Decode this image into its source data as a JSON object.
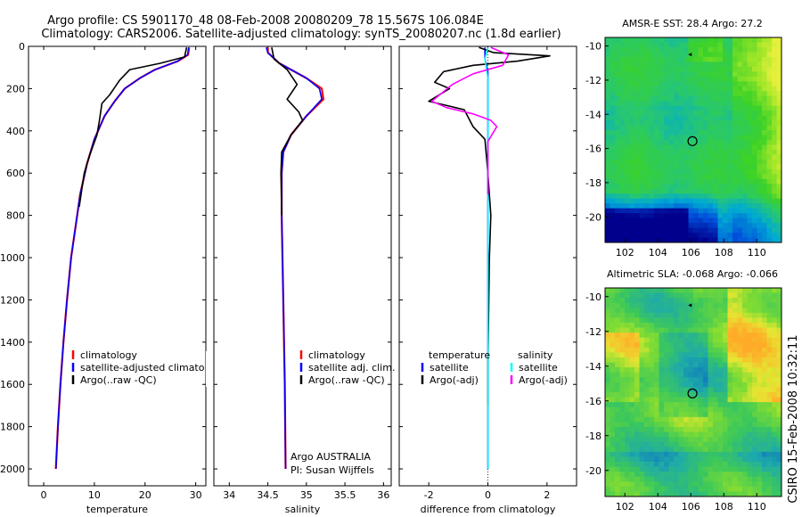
{
  "figure": {
    "title_line1": "Argo profile: CS 5901170_48 08-Feb-2008 20080209_78 15.567S 106.084E",
    "title_line2": "Climatology: CARS2006. Satellite-adjusted climatology: synTS_20080207.nc (1.8d earlier)",
    "side_label": "CSIRO 15-Feb-2008 10:32:11",
    "colors": {
      "climatology": "#ff0000",
      "satellite": "#0000ff",
      "argo": "#000000",
      "sat_diff": "#00ffff",
      "argo_adj": "#ff00ff"
    }
  },
  "chart_data": [
    {
      "type": "line",
      "xlabel": "temperature",
      "ylabel": "",
      "xlim": [
        -3,
        32
      ],
      "ylim": [
        2080,
        0
      ],
      "y_reversed": true,
      "xticks": [
        0,
        10,
        20,
        30
      ],
      "yticks": [
        0,
        200,
        400,
        600,
        800,
        1000,
        1200,
        1400,
        1600,
        1800,
        2000
      ],
      "legend": {
        "placement": "bottom-left",
        "entries": [
          "climatology",
          "satellite-adjusted climatology",
          "Argo(..raw -QC)"
        ]
      },
      "series": [
        {
          "name": "climatology",
          "color": "#ff0000",
          "points": [
            [
              28.7,
              5
            ],
            [
              28.5,
              40
            ],
            [
              26.5,
              70
            ],
            [
              22,
              110
            ],
            [
              19,
              150
            ],
            [
              16,
              200
            ],
            [
              14,
              260
            ],
            [
              12,
              330
            ],
            [
              10,
              440
            ],
            [
              8.5,
              560
            ],
            [
              7.2,
              700
            ],
            [
              6.3,
              850
            ],
            [
              5.4,
              1000
            ],
            [
              4.6,
              1200
            ],
            [
              3.9,
              1400
            ],
            [
              3.3,
              1600
            ],
            [
              2.8,
              1800
            ],
            [
              2.4,
              2000
            ]
          ]
        },
        {
          "name": "satellite-adjusted climatology",
          "color": "#0000ff",
          "points": [
            [
              28.6,
              5
            ],
            [
              28.4,
              40
            ],
            [
              26.4,
              70
            ],
            [
              22,
              110
            ],
            [
              19,
              150
            ],
            [
              16,
              200
            ],
            [
              14,
              260
            ],
            [
              12,
              330
            ],
            [
              10,
              440
            ],
            [
              8.5,
              560
            ],
            [
              7.2,
              700
            ],
            [
              6.3,
              850
            ],
            [
              5.4,
              1000
            ],
            [
              4.6,
              1200
            ],
            [
              3.9,
              1400
            ],
            [
              3.3,
              1600
            ],
            [
              2.8,
              1800
            ],
            [
              2.4,
              2000
            ]
          ]
        },
        {
          "name": "Argo(..raw -QC)",
          "color": "#000000",
          "points": [
            [
              28.2,
              5
            ],
            [
              27.8,
              50
            ],
            [
              23,
              80
            ],
            [
              17,
              110
            ],
            [
              15,
              160
            ],
            [
              13,
              230
            ],
            [
              11.5,
              270
            ],
            [
              11,
              350
            ],
            [
              10.5,
              420
            ],
            [
              9,
              520
            ],
            [
              8,
              600
            ],
            [
              7,
              760
            ]
          ]
        }
      ]
    },
    {
      "type": "line",
      "xlabel": "salinity",
      "ylabel": "",
      "xlim": [
        33.8,
        36.1
      ],
      "ylim": [
        2080,
        0
      ],
      "y_reversed": true,
      "xticks": [
        34,
        34.5,
        35,
        35.5,
        36
      ],
      "legend": {
        "placement": "bottom-right",
        "entries": [
          "climatology",
          "satellite adj. clim.",
          "Argo(..raw -QC)"
        ]
      },
      "annotation": {
        "line1": "Argo AUSTRALIA",
        "line2": "PI: Susan Wijffels"
      },
      "series": [
        {
          "name": "climatology",
          "color": "#ff0000",
          "points": [
            [
              34.5,
              5
            ],
            [
              34.5,
              30
            ],
            [
              34.65,
              80
            ],
            [
              35.0,
              150
            ],
            [
              35.2,
              200
            ],
            [
              35.22,
              250
            ],
            [
              35.0,
              330
            ],
            [
              34.8,
              420
            ],
            [
              34.7,
              500
            ],
            [
              34.68,
              600
            ],
            [
              34.68,
              800
            ],
            [
              34.7,
              1200
            ],
            [
              34.72,
              1600
            ],
            [
              34.73,
              2000
            ]
          ]
        },
        {
          "name": "satellite adj. clim.",
          "color": "#0000ff",
          "points": [
            [
              34.48,
              5
            ],
            [
              34.5,
              30
            ],
            [
              34.65,
              80
            ],
            [
              35.0,
              150
            ],
            [
              35.17,
              200
            ],
            [
              35.2,
              250
            ],
            [
              35.0,
              330
            ],
            [
              34.8,
              420
            ],
            [
              34.7,
              500
            ],
            [
              34.68,
              600
            ],
            [
              34.68,
              800
            ],
            [
              34.7,
              1200
            ],
            [
              34.72,
              1600
            ],
            [
              34.73,
              2000
            ]
          ]
        },
        {
          "name": "Argo(..raw -QC)",
          "color": "#000000",
          "points": [
            [
              34.55,
              5
            ],
            [
              34.58,
              60
            ],
            [
              34.75,
              110
            ],
            [
              34.88,
              180
            ],
            [
              34.75,
              250
            ],
            [
              34.9,
              310
            ],
            [
              34.95,
              350
            ],
            [
              34.8,
              420
            ],
            [
              34.68,
              500
            ],
            [
              34.67,
              600
            ],
            [
              34.68,
              800
            ]
          ]
        }
      ]
    },
    {
      "type": "line",
      "xlabel": "difference from climatology",
      "ylabel": "",
      "xlim": [
        -3.0,
        3.0
      ],
      "ylim": [
        2080,
        0
      ],
      "y_reversed": true,
      "xticks": [
        -2,
        0,
        2
      ],
      "legend": {
        "placement": "bottom-center",
        "entries": [
          "temperature",
          "satellite",
          "Argo(-adj)",
          "salinity",
          "satellite",
          "Argo(-adj)"
        ]
      },
      "series": [
        {
          "name": "temperature satellite",
          "color": "#0000ff",
          "points": [
            [
              -0.1,
              5
            ],
            [
              -0.1,
              60
            ],
            [
              0,
              120
            ],
            [
              0,
              300
            ],
            [
              0,
              800
            ],
            [
              0,
              2000
            ]
          ]
        },
        {
          "name": "temperature Argo(-adj)",
          "color": "#000000",
          "points": [
            [
              -0.3,
              5
            ],
            [
              0.2,
              30
            ],
            [
              2.1,
              45
            ],
            [
              1,
              70
            ],
            [
              -0.5,
              90
            ],
            [
              -1.5,
              120
            ],
            [
              -1.8,
              170
            ],
            [
              -1.3,
              200
            ],
            [
              -2.0,
              260
            ],
            [
              -0.8,
              300
            ],
            [
              -0.5,
              380
            ],
            [
              -0.1,
              440
            ],
            [
              0,
              600
            ],
            [
              0.1,
              800
            ],
            [
              0.05,
              1000
            ],
            [
              0,
              1500
            ],
            [
              0,
              1700
            ]
          ]
        },
        {
          "name": "salinity satellite",
          "color": "#00ffff",
          "points": [
            [
              0,
              5
            ],
            [
              -0.1,
              60
            ],
            [
              0,
              150
            ],
            [
              0,
              400
            ],
            [
              0,
              800
            ],
            [
              0,
              2000
            ]
          ]
        },
        {
          "name": "salinity Argo(-adj)",
          "color": "#ff00ff",
          "points": [
            [
              0.1,
              5
            ],
            [
              0.7,
              40
            ],
            [
              0.5,
              90
            ],
            [
              -0.5,
              130
            ],
            [
              -1.2,
              180
            ],
            [
              -1.9,
              260
            ],
            [
              -1.4,
              290
            ],
            [
              -0.5,
              320
            ],
            [
              0.1,
              350
            ],
            [
              0.3,
              380
            ],
            [
              0,
              450
            ],
            [
              0,
              700
            ]
          ]
        }
      ]
    },
    {
      "type": "heatmap",
      "title": "AMSR-E SST: 28.4  Argo: 27.2",
      "xlim": [
        100.8,
        111.5
      ],
      "ylim": [
        -21.5,
        -9.5
      ],
      "xticks": [
        102,
        104,
        106,
        108,
        110
      ],
      "yticks": [
        -10,
        -12,
        -14,
        -16,
        -18,
        -20
      ],
      "profile_marker": {
        "x": 106.1,
        "y": -15.57
      }
    },
    {
      "type": "heatmap",
      "title": "Altimetric SLA: -0.068  Argo: -0.066",
      "xlim": [
        100.8,
        111.5
      ],
      "ylim": [
        -21.5,
        -9.5
      ],
      "xticks": [
        102,
        104,
        106,
        108,
        110
      ],
      "yticks": [
        -10,
        -12,
        -14,
        -16,
        -18,
        -20
      ],
      "profile_marker": {
        "x": 106.1,
        "y": -15.57
      }
    }
  ]
}
